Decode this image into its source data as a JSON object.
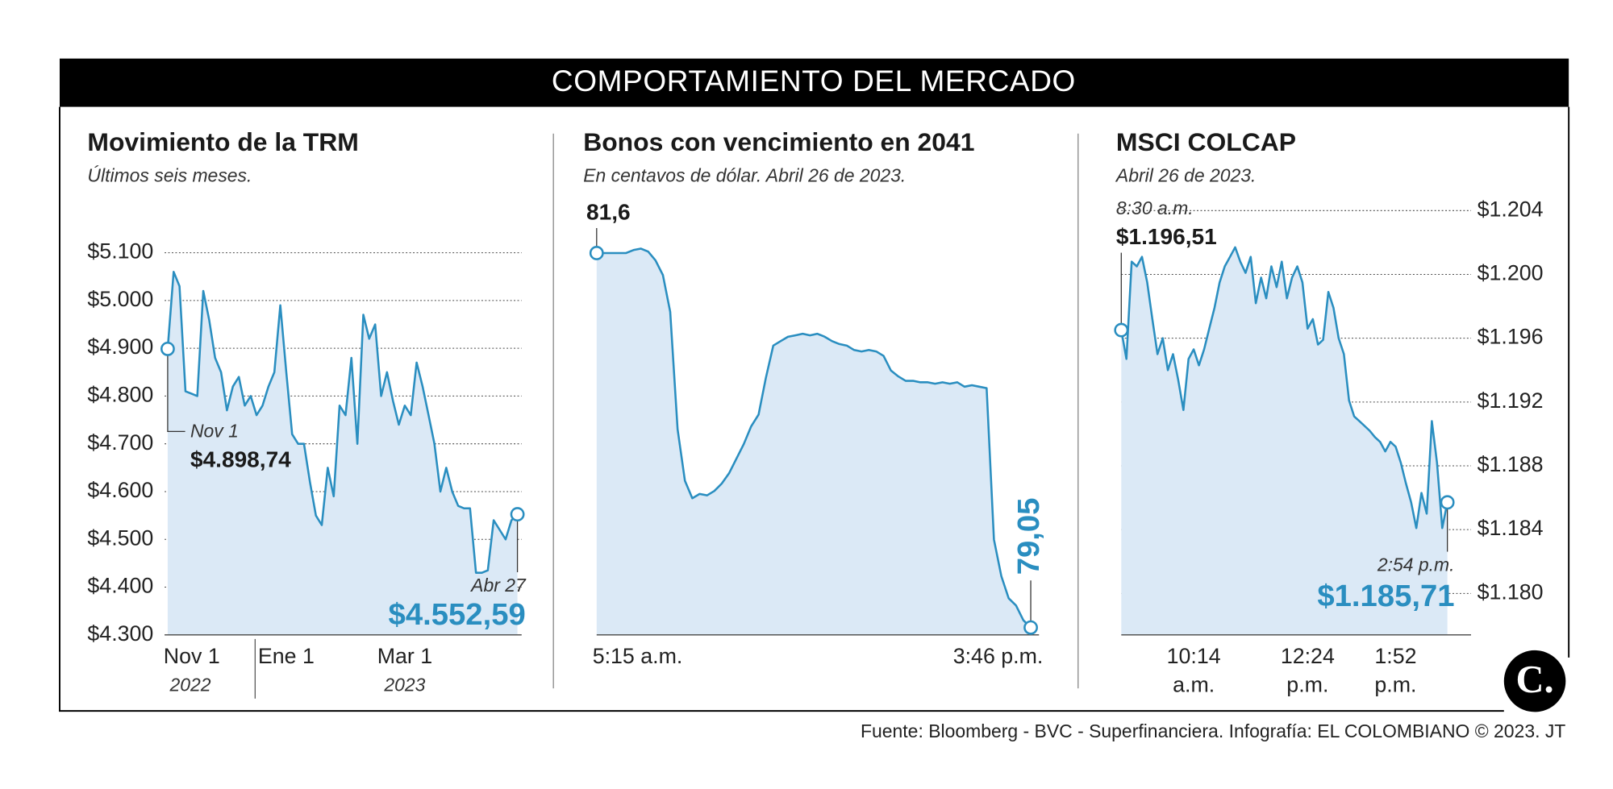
{
  "header": {
    "title": "COMPORTAMIENTO DEL MERCADO"
  },
  "footer": {
    "source": "Fuente: Bloomberg - BVC - Superfinanciera. Infografía: EL COLOMBIANO © 2023. JT",
    "logo": "C."
  },
  "chart_data": [
    {
      "type": "line",
      "title": "Movimiento de la TRM",
      "subtitle": "Últimos seis meses.",
      "color": "#2a8ec0",
      "area_color": "#dbe9f6",
      "grid": true,
      "yaxis_position": "left",
      "ylim": [
        4300,
        5100
      ],
      "yticks": [
        {
          "value": 5100,
          "label": "$5.100"
        },
        {
          "value": 5000,
          "label": "$5.000"
        },
        {
          "value": 4900,
          "label": "$4.900"
        },
        {
          "value": 4800,
          "label": "$4.800"
        },
        {
          "value": 4700,
          "label": "$4.700"
        },
        {
          "value": 4600,
          "label": "$4.600"
        },
        {
          "value": 4500,
          "label": "$4.500"
        },
        {
          "value": 4400,
          "label": "$4.400"
        },
        {
          "value": 4300,
          "label": "$4.300"
        }
      ],
      "categories": [
        "Nov 1",
        null,
        null,
        null,
        null,
        null,
        null,
        null,
        null,
        null,
        null,
        null,
        null,
        null,
        null,
        null,
        null,
        null,
        null,
        null,
        "Ene 1",
        null,
        null,
        null,
        null,
        null,
        null,
        null,
        null,
        null,
        null,
        null,
        null,
        null,
        null,
        null,
        null,
        null,
        null,
        null,
        "Mar 1",
        null,
        null,
        null,
        null,
        null,
        null,
        null,
        null,
        null,
        null,
        null,
        null,
        null,
        null,
        null,
        null,
        null,
        null,
        null
      ],
      "x_sublabels": [
        "2022",
        null,
        null,
        null,
        null,
        null,
        null,
        null,
        null,
        null,
        null,
        null,
        null,
        null,
        null,
        null,
        null,
        null,
        null,
        null,
        null,
        null,
        null,
        null,
        null,
        null,
        null,
        null,
        null,
        null,
        null,
        null,
        null,
        null,
        null,
        null,
        null,
        null,
        null,
        null,
        "2023",
        null,
        null,
        null,
        null,
        null,
        null,
        null,
        null,
        null,
        null,
        null,
        null,
        null,
        null,
        null,
        null,
        null,
        null,
        null
      ],
      "values": [
        4898.74,
        5060,
        5030,
        4810,
        4805,
        4800,
        5020,
        4960,
        4880,
        4850,
        4770,
        4820,
        4840,
        4780,
        4800,
        4760,
        4780,
        4820,
        4850,
        4990,
        4850,
        4720,
        4700,
        4700,
        4620,
        4550,
        4530,
        4650,
        4590,
        4780,
        4760,
        4880,
        4700,
        4970,
        4920,
        4950,
        4800,
        4850,
        4790,
        4740,
        4780,
        4760,
        4870,
        4820,
        4760,
        4700,
        4600,
        4650,
        4600,
        4570,
        4565,
        4565,
        4430,
        4430,
        4435,
        4540,
        4520,
        4500,
        4540,
        4552.59
      ],
      "start": {
        "time": "Nov 1",
        "label": "$4.898,74"
      },
      "end": {
        "time": "Abr 27",
        "label": "$4.552,59"
      }
    },
    {
      "type": "line",
      "title": "Bonos con vencimiento en 2041",
      "subtitle": "En centavos de dólar. Abril 26 de 2023.",
      "color": "#2a8ec0",
      "area_color": "#dbe9f6",
      "grid": false,
      "ylim": [
        79,
        81.7
      ],
      "categories": [
        "5:15 a.m.",
        null,
        null,
        null,
        null,
        null,
        null,
        null,
        null,
        null,
        null,
        null,
        null,
        null,
        null,
        null,
        null,
        null,
        null,
        null,
        null,
        null,
        null,
        null,
        null,
        null,
        null,
        null,
        null,
        null,
        null,
        null,
        null,
        null,
        null,
        null,
        null,
        null,
        null,
        null,
        null,
        null,
        null,
        null,
        null,
        null,
        null,
        null,
        null,
        null,
        null,
        null,
        null,
        null,
        null,
        null,
        null,
        null,
        null,
        "3:46 p.m."
      ],
      "values": [
        81.6,
        81.6,
        81.6,
        81.6,
        81.6,
        81.62,
        81.63,
        81.61,
        81.55,
        81.45,
        81.2,
        80.4,
        80.05,
        79.93,
        79.96,
        79.95,
        79.98,
        80.03,
        80.1,
        80.2,
        80.3,
        80.42,
        80.5,
        80.75,
        80.97,
        81.0,
        81.03,
        81.04,
        81.05,
        81.04,
        81.05,
        81.03,
        81.0,
        80.98,
        80.97,
        80.94,
        80.93,
        80.94,
        80.93,
        80.9,
        80.8,
        80.76,
        80.73,
        80.73,
        80.72,
        80.72,
        80.71,
        80.72,
        80.71,
        80.72,
        80.69,
        80.7,
        80.69,
        80.68,
        79.65,
        79.4,
        79.25,
        79.2,
        79.1,
        79.05
      ],
      "start": {
        "label": "81,6"
      },
      "end": {
        "label": "79,05"
      }
    },
    {
      "type": "line",
      "title": "MSCI COLCAP",
      "subtitle": "Abril 26 de 2023.",
      "color": "#2a8ec0",
      "area_color": "#dbe9f6",
      "grid": true,
      "yaxis_position": "right",
      "ylim": [
        1177.4,
        1204
      ],
      "yticks": [
        {
          "value": 1204,
          "label": "$1.204"
        },
        {
          "value": 1200,
          "label": "$1.200"
        },
        {
          "value": 1196,
          "label": "$1.196"
        },
        {
          "value": 1192,
          "label": "$1.192"
        },
        {
          "value": 1188,
          "label": "$1.188"
        },
        {
          "value": 1184,
          "label": "$1.184"
        },
        {
          "value": 1180,
          "label": "$1.180"
        }
      ],
      "categories": [
        null,
        null,
        null,
        null,
        null,
        null,
        null,
        null,
        null,
        null,
        null,
        null,
        null,
        null,
        "10:14",
        null,
        null,
        null,
        null,
        null,
        null,
        null,
        null,
        null,
        null,
        null,
        null,
        null,
        null,
        null,
        null,
        null,
        null,
        null,
        null,
        null,
        "12:24",
        null,
        null,
        null,
        null,
        null,
        null,
        null,
        null,
        null,
        null,
        null,
        null,
        null,
        null,
        null,
        null,
        "1:52",
        null,
        null,
        null,
        null,
        null,
        null,
        null,
        null,
        null,
        null
      ],
      "x_sublabels": [
        null,
        null,
        null,
        null,
        null,
        null,
        null,
        null,
        null,
        null,
        null,
        null,
        null,
        null,
        "a.m.",
        null,
        null,
        null,
        null,
        null,
        null,
        null,
        null,
        null,
        null,
        null,
        null,
        null,
        null,
        null,
        null,
        null,
        null,
        null,
        null,
        null,
        "p.m.",
        null,
        null,
        null,
        null,
        null,
        null,
        null,
        null,
        null,
        null,
        null,
        null,
        null,
        null,
        null,
        null,
        "p.m.",
        null,
        null,
        null,
        null,
        null,
        null,
        null,
        null,
        null,
        null
      ],
      "values": [
        1196.51,
        1194.7,
        1200.8,
        1200.5,
        1201.1,
        1199.5,
        1197.2,
        1195.0,
        1196.0,
        1194.0,
        1195.0,
        1193.4,
        1191.5,
        1194.7,
        1195.3,
        1194.3,
        1195.3,
        1196.6,
        1197.9,
        1199.5,
        1200.5,
        1201.1,
        1201.7,
        1200.8,
        1200.1,
        1201.1,
        1198.2,
        1199.8,
        1198.5,
        1200.5,
        1199.2,
        1200.8,
        1198.5,
        1199.8,
        1200.5,
        1199.5,
        1196.6,
        1197.2,
        1195.6,
        1195.9,
        1198.9,
        1197.9,
        1196.0,
        1195.0,
        1192.1,
        1191.1,
        1190.8,
        1190.5,
        1190.2,
        1189.8,
        1189.5,
        1188.9,
        1189.5,
        1189.2,
        1188.2,
        1186.9,
        1185.7,
        1184.1,
        1186.3,
        1185.0,
        1190.8,
        1188.2,
        1184.1,
        1185.71
      ],
      "start": {
        "time": "8:30 a.m.",
        "label": "$1.196,51"
      },
      "end": {
        "time": "2:54 p.m.",
        "label": "$1.185,71"
      }
    }
  ]
}
